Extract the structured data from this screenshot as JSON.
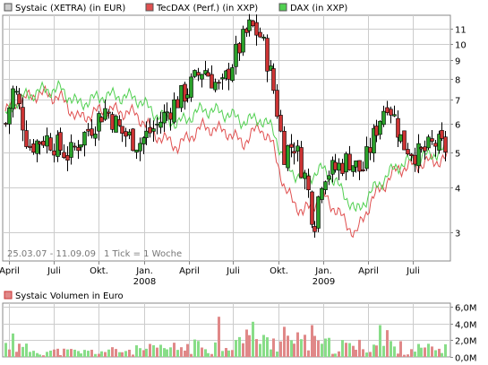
{
  "legend": [
    {
      "label": "Systaic (XETRA) (in EUR)",
      "color": "#cccccc"
    },
    {
      "label": "TecDAX (Perf.) (in XXP)",
      "color": "#e05050"
    },
    {
      "label": "DAX (in XXP)",
      "color": "#50d050"
    }
  ],
  "range_note": "25.03.07 - 11.09.09",
  "tick_note": "1 Tick = 1 Woche",
  "volume_title": "Systaic Volumen in Euro",
  "colors": {
    "up": "#2aa02a",
    "down": "#cc3333",
    "tecdax": "#e05050",
    "dax": "#50d050",
    "grid": "#cccccc",
    "vol_up": "#88dd88",
    "vol_down": "#e08888"
  },
  "chart_data": [
    {
      "type": "candlestick",
      "title": "",
      "y_scale": "log",
      "ylim": [
        2.5,
        12
      ],
      "y_ticks": [
        "3",
        "4",
        "5",
        "6",
        "7",
        "8",
        "9",
        "10",
        "11"
      ],
      "x_ticks": [
        {
          "label": "April",
          "year": ""
        },
        {
          "label": "Juli",
          "year": ""
        },
        {
          "label": "Okt.",
          "year": ""
        },
        {
          "label": "Jan.",
          "year": "2008"
        },
        {
          "label": "April",
          "year": ""
        },
        {
          "label": "Juli",
          "year": ""
        },
        {
          "label": "Okt.",
          "year": ""
        },
        {
          "label": "Jan.",
          "year": "2009"
        },
        {
          "label": "April",
          "year": ""
        },
        {
          "label": "Juli",
          "year": ""
        }
      ],
      "x_range": [
        "2007-03-25",
        "2009-09-11"
      ],
      "close_anchors": [
        [
          "2007-03-25",
          6.0
        ],
        [
          "2007-04-10",
          7.6
        ],
        [
          "2007-05-10",
          5.2
        ],
        [
          "2007-06-15",
          5.5
        ],
        [
          "2007-08-01",
          4.9
        ],
        [
          "2007-09-15",
          5.9
        ],
        [
          "2007-10-15",
          6.6
        ],
        [
          "2007-11-15",
          5.7
        ],
        [
          "2007-12-20",
          5.3
        ],
        [
          "2008-01-25",
          5.9
        ],
        [
          "2008-03-01",
          6.8
        ],
        [
          "2008-04-01",
          7.5
        ],
        [
          "2008-05-01",
          8.6
        ],
        [
          "2008-06-05",
          7.4
        ],
        [
          "2008-07-10",
          9.6
        ],
        [
          "2008-08-05",
          11.2
        ],
        [
          "2008-08-25",
          10.5
        ],
        [
          "2008-09-20",
          7.6
        ],
        [
          "2008-10-10",
          5.0
        ],
        [
          "2008-11-01",
          5.3
        ],
        [
          "2008-11-25",
          4.2
        ],
        [
          "2008-12-12",
          3.1
        ],
        [
          "2008-12-30",
          4.4
        ],
        [
          "2009-01-25",
          4.5
        ],
        [
          "2009-02-20",
          4.8
        ],
        [
          "2009-03-20",
          4.4
        ],
        [
          "2009-04-10",
          5.4
        ],
        [
          "2009-05-10",
          7.0
        ],
        [
          "2009-06-10",
          5.3
        ],
        [
          "2009-07-15",
          4.9
        ],
        [
          "2009-08-15",
          5.3
        ],
        [
          "2009-09-11",
          5.1
        ]
      ],
      "series": [
        {
          "name": "TecDAX (Perf.) (in XXP)",
          "values": [
            [
              "2007-03-25",
              6.5
            ],
            [
              "2007-04-20",
              6.9
            ],
            [
              "2007-06-01",
              7.3
            ],
            [
              "2007-07-15",
              7.1
            ],
            [
              "2007-08-20",
              6.2
            ],
            [
              "2007-10-15",
              6.6
            ],
            [
              "2007-12-15",
              6.4
            ],
            [
              "2008-01-25",
              5.6
            ],
            [
              "2008-03-10",
              5.2
            ],
            [
              "2008-05-01",
              5.9
            ],
            [
              "2008-06-20",
              5.7
            ],
            [
              "2008-07-20",
              5.3
            ],
            [
              "2008-08-25",
              5.9
            ],
            [
              "2008-09-20",
              5.2
            ],
            [
              "2008-10-15",
              3.9
            ],
            [
              "2008-11-20",
              3.4
            ],
            [
              "2009-01-01",
              3.8
            ],
            [
              "2009-02-15",
              3.2
            ],
            [
              "2009-03-08",
              2.95
            ],
            [
              "2009-04-10",
              3.7
            ],
            [
              "2009-06-01",
              4.5
            ],
            [
              "2009-08-01",
              4.7
            ],
            [
              "2009-09-11",
              4.8
            ]
          ]
        },
        {
          "name": "DAX (in XXP)",
          "values": [
            [
              "2007-03-25",
              6.3
            ],
            [
              "2007-04-20",
              7.0
            ],
            [
              "2007-06-01",
              7.4
            ],
            [
              "2007-07-15",
              7.5
            ],
            [
              "2007-08-20",
              6.8
            ],
            [
              "2007-10-15",
              7.2
            ],
            [
              "2007-12-15",
              7.1
            ],
            [
              "2008-01-25",
              6.4
            ],
            [
              "2008-03-10",
              6.0
            ],
            [
              "2008-05-01",
              6.6
            ],
            [
              "2008-06-20",
              6.4
            ],
            [
              "2008-07-20",
              6.1
            ],
            [
              "2008-08-25",
              6.2
            ],
            [
              "2008-09-20",
              5.8
            ],
            [
              "2008-10-15",
              4.6
            ],
            [
              "2008-11-20",
              4.2
            ],
            [
              "2009-01-01",
              4.5
            ],
            [
              "2009-02-15",
              3.8
            ],
            [
              "2009-03-08",
              3.4
            ],
            [
              "2009-04-10",
              3.9
            ],
            [
              "2009-06-01",
              4.6
            ],
            [
              "2009-08-01",
              4.9
            ],
            [
              "2009-09-11",
              5.1
            ]
          ]
        }
      ]
    },
    {
      "type": "bar",
      "title": "Systaic Volumen in Euro",
      "ylim": [
        0,
        6
      ],
      "y_unit": "M",
      "y_ticks": [
        "0,0M",
        "2,0M",
        "4,0M",
        "6,0M"
      ],
      "x_range": [
        "2007-03-25",
        "2009-09-11"
      ],
      "volume_anchors": [
        [
          "2007-03-25",
          1.6
        ],
        [
          "2007-06-01",
          0.8
        ],
        [
          "2007-09-01",
          0.7
        ],
        [
          "2007-12-01",
          0.9
        ],
        [
          "2008-03-01",
          1.2
        ],
        [
          "2008-05-15",
          1.6
        ],
        [
          "2008-07-01",
          2.0
        ],
        [
          "2008-08-10",
          2.6
        ],
        [
          "2008-09-10",
          1.8
        ],
        [
          "2008-10-15",
          2.4
        ],
        [
          "2008-12-01",
          1.8
        ],
        [
          "2009-01-20",
          1.5
        ],
        [
          "2009-03-10",
          1.4
        ],
        [
          "2009-04-20",
          1.8
        ],
        [
          "2009-06-15",
          1.2
        ],
        [
          "2009-09-11",
          1.0
        ]
      ],
      "volume_peaks": [
        [
          "2008-06-01",
          4.8
        ],
        [
          "2008-08-10",
          4.2
        ],
        [
          "2008-10-10",
          3.6
        ],
        [
          "2008-12-10",
          3.8
        ],
        [
          "2009-04-25",
          3.8
        ],
        [
          "2009-05-10",
          3.2
        ],
        [
          "2007-04-05",
          2.8
        ]
      ]
    }
  ]
}
